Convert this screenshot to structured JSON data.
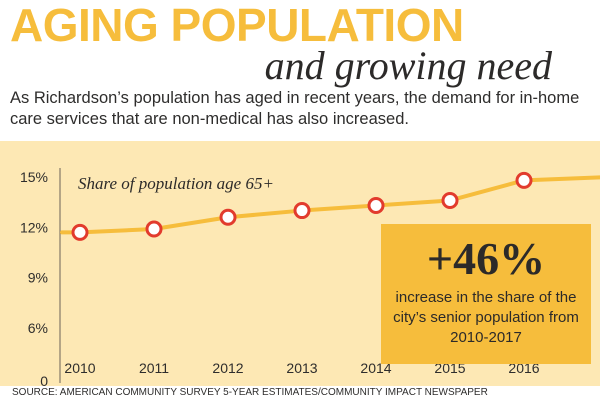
{
  "header": {
    "title": "AGING POPULATION",
    "subtitle": "and growing need",
    "intro": "As Richardson’s population has aged in recent years, the demand for in-home care services that are non-medical has also increased."
  },
  "colors": {
    "accent": "#f6bd3c",
    "panel_bg": "#fde8b4",
    "line": "#f6bd3c",
    "marker_stroke": "#e23b2d"
  },
  "chart_data": {
    "type": "line",
    "title": "Share of population age 65+",
    "x": [
      "2010",
      "2011",
      "2012",
      "2013",
      "2014",
      "2015",
      "2016"
    ],
    "series": [
      {
        "values": [
          11.7,
          11.9,
          12.6,
          13.0,
          13.3,
          13.6,
          14.8
        ]
      }
    ],
    "ylim": [
      0,
      15
    ],
    "y_ticks": [
      "0",
      "6%",
      "9%",
      "12%",
      "15%"
    ],
    "grid": false
  },
  "callout": {
    "value": "+46%",
    "text": "increase in the share of the city’s senior population from 2010-2017"
  },
  "source": "SOURCE: AMERICAN COMMUNITY SURVEY 5-YEAR ESTIMATES/COMMUNITY IMPACT NEWSPAPER"
}
